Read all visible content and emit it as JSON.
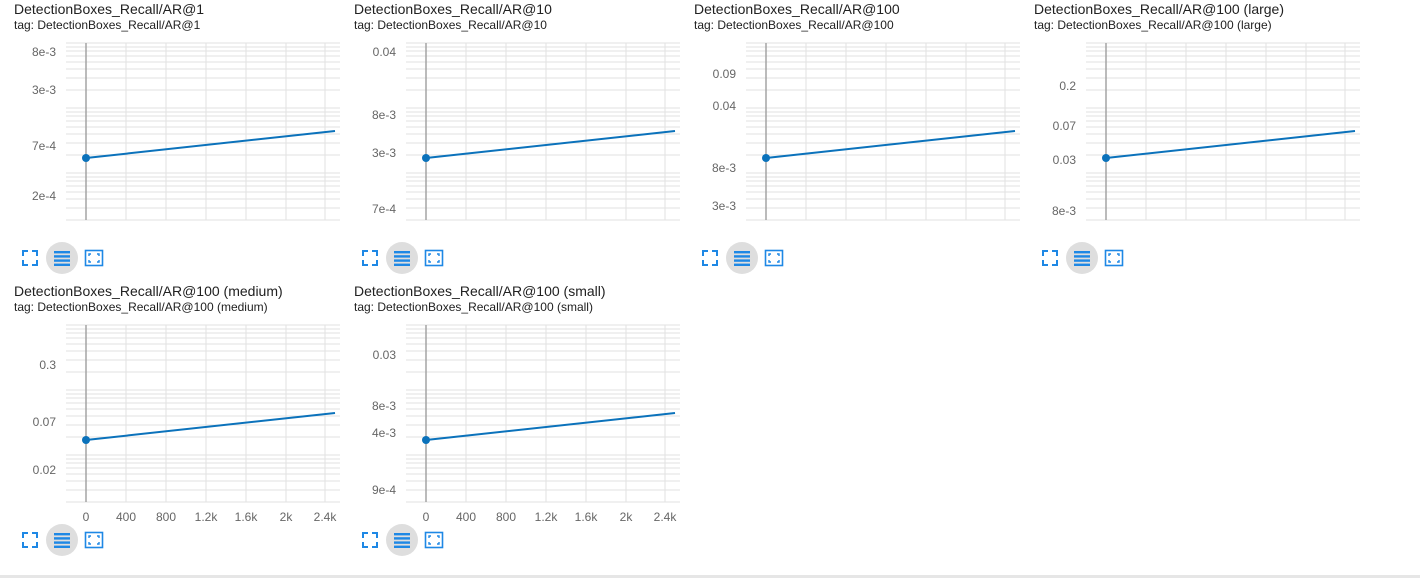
{
  "colors": {
    "series": "#0b72bb",
    "grid": "#d9d9d9",
    "icon": "#1e88e5",
    "active_bg": "#dedede"
  },
  "cards": [
    {
      "title": "DetectionBoxes_Recall/AR@1",
      "tag": "tag: DetectionBoxes_Recall/AR@1",
      "y_ticks": [
        "8e-3",
        "3e-3",
        "7e-4",
        "2e-4"
      ],
      "x_ticks": []
    },
    {
      "title": "DetectionBoxes_Recall/AR@10",
      "tag": "tag: DetectionBoxes_Recall/AR@10",
      "y_ticks": [
        "0.04",
        "8e-3",
        "3e-3",
        "7e-4"
      ],
      "x_ticks": []
    },
    {
      "title": "DetectionBoxes_Recall/AR@100",
      "tag": "tag: DetectionBoxes_Recall/AR@100",
      "y_ticks": [
        "0.09",
        "0.04",
        "8e-3",
        "3e-3"
      ],
      "x_ticks": []
    },
    {
      "title": "DetectionBoxes_Recall/AR@100 (large)",
      "tag": "tag: DetectionBoxes_Recall/AR@100 (large)",
      "y_ticks": [
        "0.2",
        "0.07",
        "0.03",
        "8e-3"
      ],
      "x_ticks": []
    },
    {
      "title": "DetectionBoxes_Recall/AR@100 (medium)",
      "tag": "tag: DetectionBoxes_Recall/AR@100 (medium)",
      "y_ticks": [
        "0.3",
        "0.07",
        "0.02"
      ],
      "x_ticks": [
        "0",
        "400",
        "800",
        "1.2k",
        "1.6k",
        "2k",
        "2.4k"
      ]
    },
    {
      "title": "DetectionBoxes_Recall/AR@100 (small)",
      "tag": "tag: DetectionBoxes_Recall/AR@100 (small)",
      "y_ticks": [
        "0.03",
        "8e-3",
        "4e-3",
        "9e-4"
      ],
      "x_ticks": [
        "0",
        "400",
        "800",
        "1.2k",
        "1.6k",
        "2k",
        "2.4k"
      ]
    }
  ],
  "toolbar": {
    "icons": [
      "fullscreen-icon",
      "data-selection-icon",
      "fit-domain-icon"
    ]
  }
}
